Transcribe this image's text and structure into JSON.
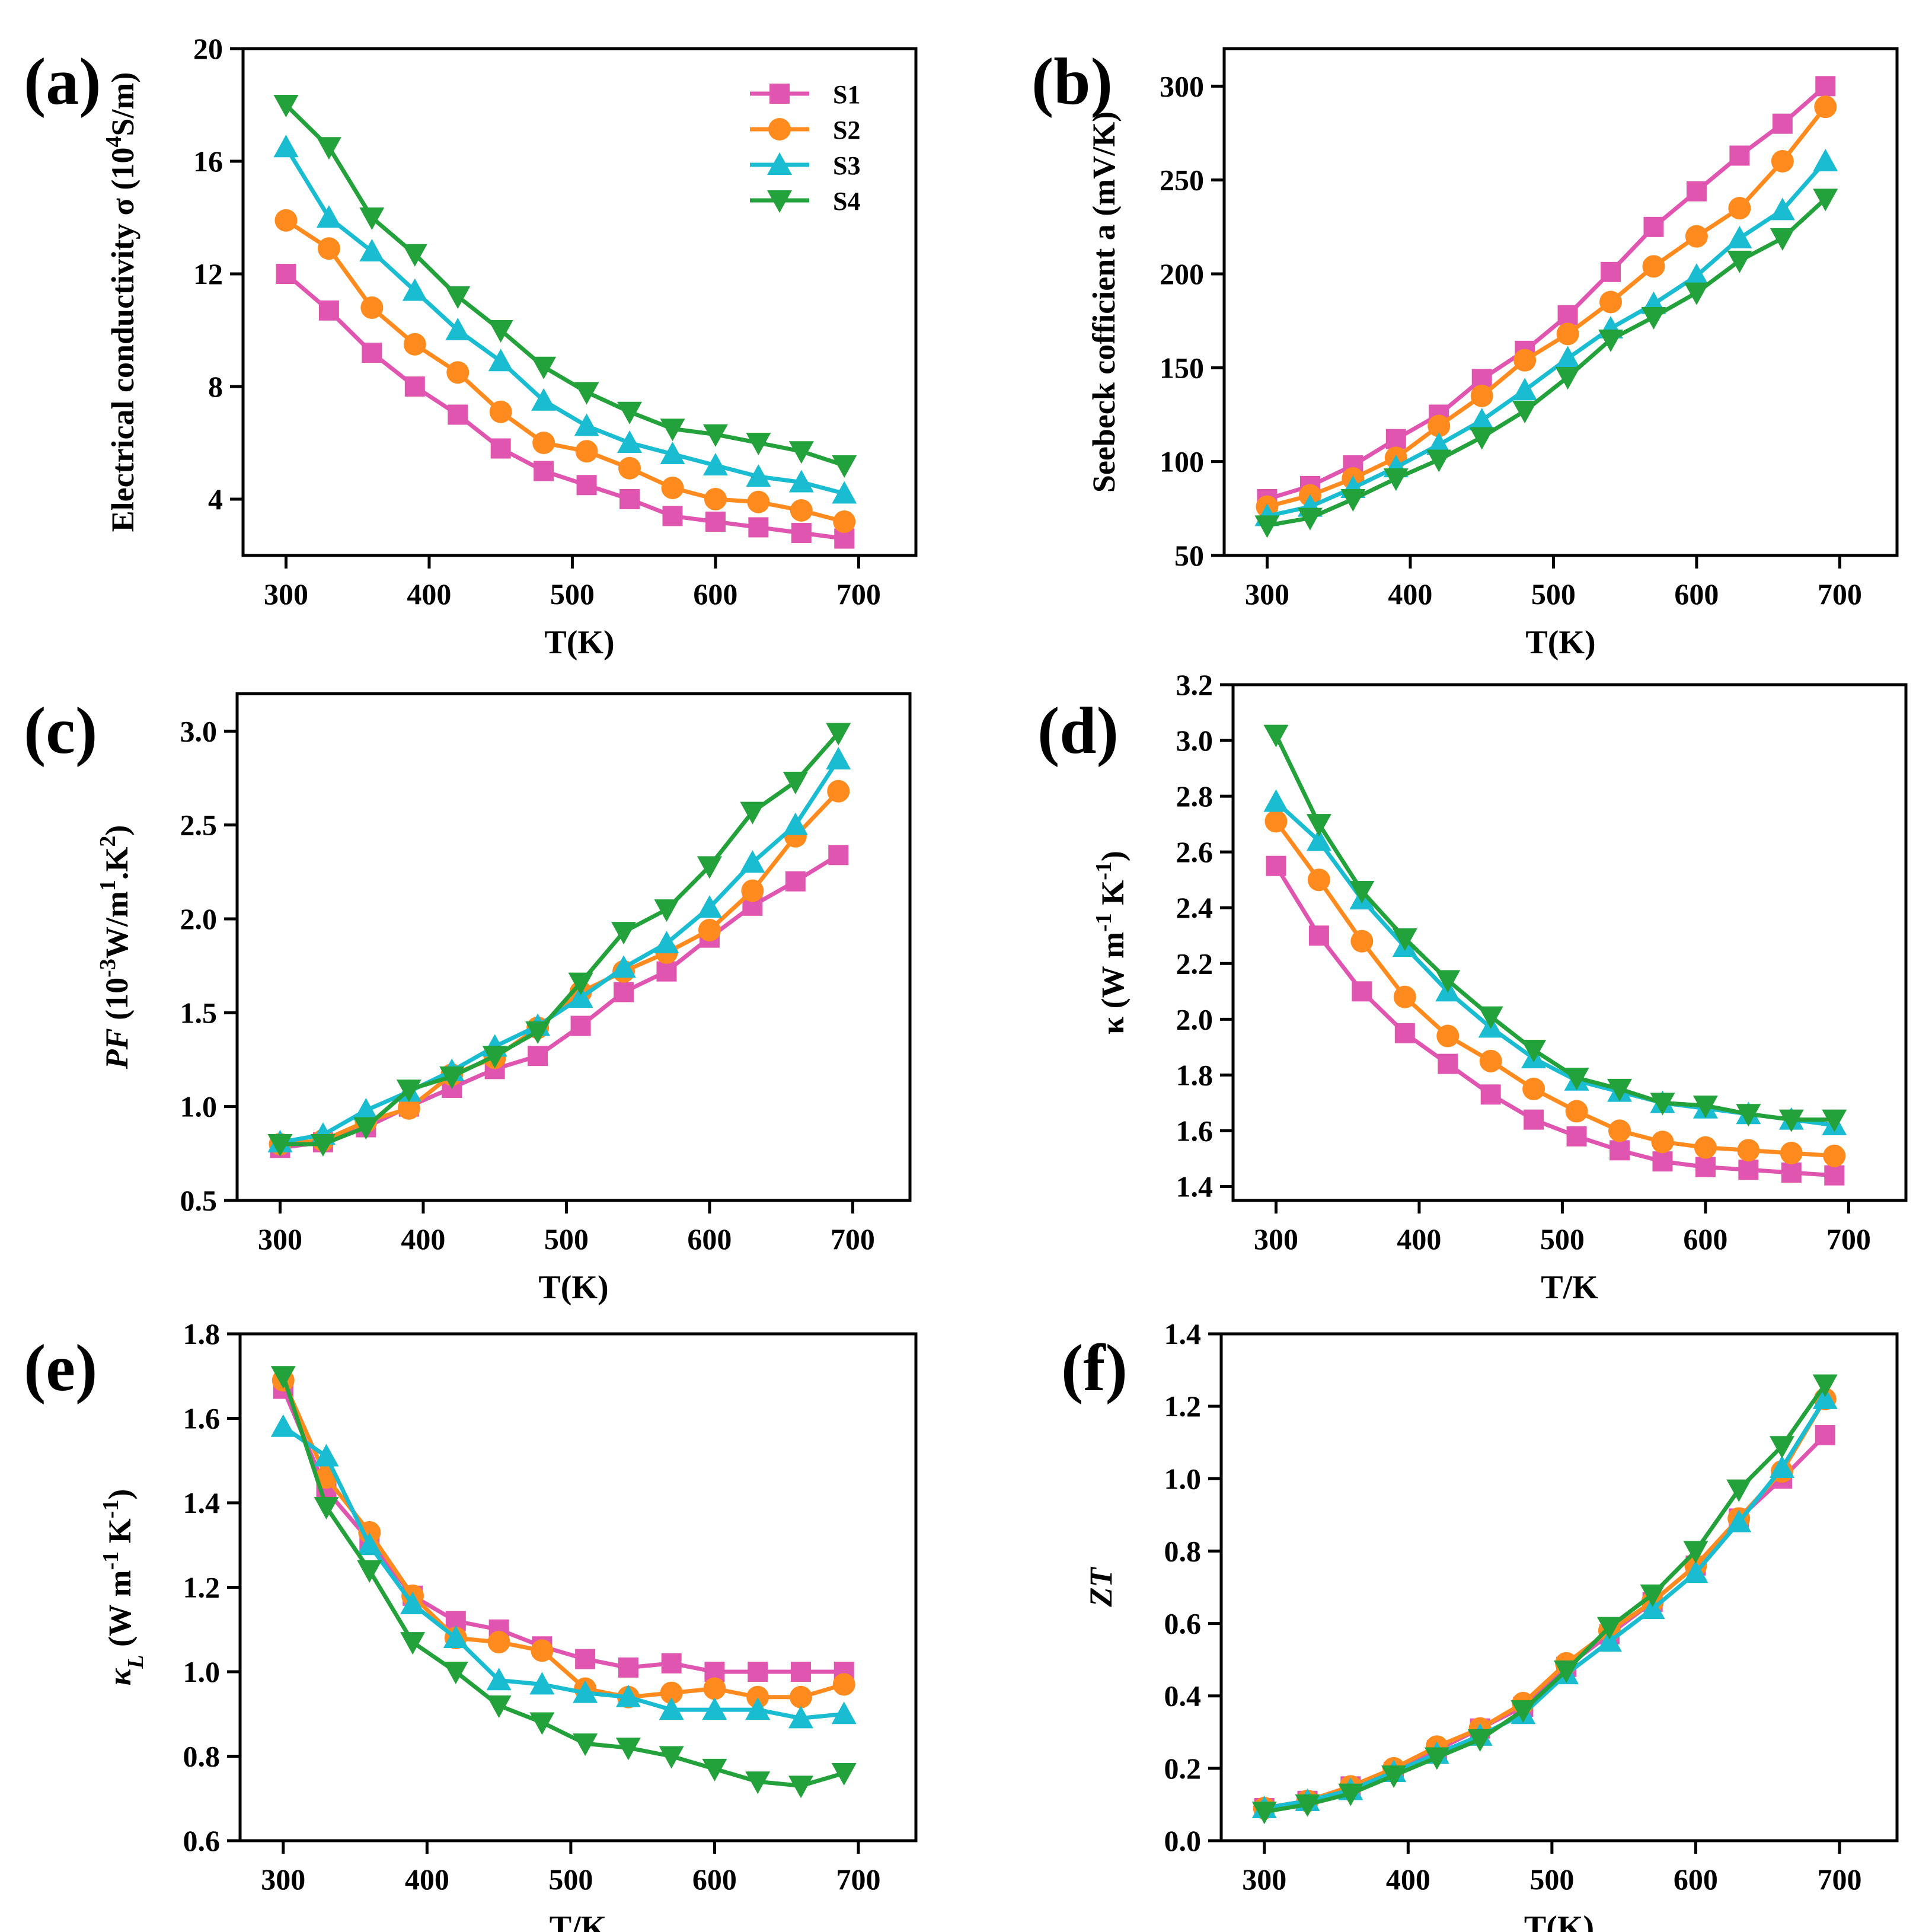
{
  "figure": {
    "series_names": [
      "S1",
      "S2",
      "S3",
      "S4"
    ],
    "colors": {
      "S1": "#e055b0",
      "S2": "#ff8a1e",
      "S3": "#19bcd1",
      "S4": "#23a13a"
    },
    "markers": {
      "S1": "square",
      "S2": "circle",
      "S3": "triangle-up",
      "S4": "triangle-down"
    }
  },
  "chart_data": [
    {
      "panel": "(a)",
      "type": "line",
      "xlabel": "T(K)",
      "ylabel_parts": [
        "Electrical conductivity σ (10",
        "4",
        "S/m)"
      ],
      "xlim": [
        270,
        740
      ],
      "ylim": [
        2,
        20
      ],
      "xticks": [
        300,
        400,
        500,
        600,
        700
      ],
      "yticks": [
        4,
        8,
        12,
        16,
        20
      ],
      "legend": "top-right",
      "x": [
        300,
        330,
        360,
        390,
        420,
        450,
        480,
        510,
        540,
        570,
        600,
        630,
        660,
        690
      ],
      "series": [
        {
          "name": "S1",
          "values": [
            12.0,
            10.7,
            9.2,
            8.0,
            7.0,
            5.8,
            5.0,
            4.5,
            4.0,
            3.4,
            3.2,
            3.0,
            2.8,
            2.6
          ]
        },
        {
          "name": "S2",
          "values": [
            13.9,
            12.9,
            10.8,
            9.5,
            8.5,
            7.1,
            6.0,
            5.7,
            5.1,
            4.4,
            4.0,
            3.9,
            3.6,
            3.2
          ]
        },
        {
          "name": "S3",
          "values": [
            16.5,
            14.0,
            12.8,
            11.4,
            10.0,
            8.9,
            7.5,
            6.6,
            6.0,
            5.6,
            5.2,
            4.8,
            4.6,
            4.2
          ]
        },
        {
          "name": "S4",
          "values": [
            18.0,
            16.5,
            14.0,
            12.7,
            11.2,
            10.0,
            8.7,
            7.8,
            7.1,
            6.5,
            6.3,
            6.0,
            5.7,
            5.2
          ]
        }
      ]
    },
    {
      "panel": "(b)",
      "type": "line",
      "xlabel": "T(K)",
      "ylabel_parts": [
        "Seebeck cofficient  a  (mV/K)"
      ],
      "xlim": [
        270,
        740
      ],
      "ylim": [
        50,
        320
      ],
      "xticks": [
        300,
        400,
        500,
        600,
        700
      ],
      "yticks": [
        50,
        100,
        150,
        200,
        250,
        300
      ],
      "x": [
        300,
        330,
        360,
        390,
        420,
        450,
        480,
        510,
        540,
        570,
        600,
        630,
        660,
        690
      ],
      "series": [
        {
          "name": "S1",
          "values": [
            80,
            87,
            98,
            112,
            125,
            144,
            159,
            178,
            201,
            225,
            244,
            263,
            280,
            300
          ]
        },
        {
          "name": "S2",
          "values": [
            76,
            82,
            91,
            102,
            119,
            135,
            154,
            168,
            185,
            204,
            220,
            235,
            260,
            289
          ]
        },
        {
          "name": "S3",
          "values": [
            71,
            76,
            86,
            97,
            109,
            122,
            138,
            155,
            171,
            184,
            199,
            219,
            234,
            260
          ]
        },
        {
          "name": "S4",
          "values": [
            66,
            70,
            80,
            91,
            101,
            113,
            127,
            145,
            165,
            177,
            190,
            207,
            219,
            240
          ]
        }
      ]
    },
    {
      "panel": "(c)",
      "type": "line",
      "xlabel": "T(K)",
      "ylabel_parts": [
        "PF",
        " (10",
        "-3",
        "W/m",
        "1",
        ".K",
        "2",
        ")"
      ],
      "xlim": [
        270,
        740
      ],
      "ylim": [
        0.5,
        3.2
      ],
      "xticks": [
        300,
        400,
        500,
        600,
        700
      ],
      "yticks": [
        0.5,
        1.0,
        1.5,
        2.0,
        2.5,
        3.0
      ],
      "x": [
        300,
        330,
        360,
        390,
        420,
        450,
        480,
        510,
        540,
        570,
        600,
        630,
        660,
        690
      ],
      "series": [
        {
          "name": "S1",
          "values": [
            0.78,
            0.81,
            0.89,
            1.0,
            1.1,
            1.2,
            1.27,
            1.43,
            1.61,
            1.72,
            1.9,
            2.07,
            2.2,
            2.34
          ]
        },
        {
          "name": "S2",
          "values": [
            0.8,
            0.82,
            0.92,
            0.99,
            1.17,
            1.26,
            1.42,
            1.61,
            1.72,
            1.82,
            1.94,
            2.15,
            2.44,
            2.68
          ]
        },
        {
          "name": "S3",
          "values": [
            0.81,
            0.85,
            0.98,
            1.08,
            1.19,
            1.32,
            1.43,
            1.58,
            1.74,
            1.87,
            2.06,
            2.3,
            2.5,
            2.85
          ]
        },
        {
          "name": "S4",
          "values": [
            0.8,
            0.8,
            0.89,
            1.09,
            1.16,
            1.27,
            1.4,
            1.66,
            1.93,
            2.05,
            2.28,
            2.57,
            2.73,
            2.99
          ]
        }
      ]
    },
    {
      "panel": "(d)",
      "type": "line",
      "xlabel": "T/K",
      "ylabel_parts": [
        "κ (W m",
        "-1",
        " K",
        "-1",
        ")"
      ],
      "xlim": [
        270,
        740
      ],
      "ylim": [
        1.35,
        3.2
      ],
      "xticks": [
        300,
        400,
        500,
        600,
        700
      ],
      "yticks": [
        1.4,
        1.6,
        1.8,
        2.0,
        2.2,
        2.4,
        2.6,
        2.8,
        3.0,
        3.2
      ],
      "x": [
        300,
        330,
        360,
        390,
        420,
        450,
        480,
        510,
        540,
        570,
        600,
        630,
        660,
        690
      ],
      "series": [
        {
          "name": "S1",
          "values": [
            2.55,
            2.3,
            2.1,
            1.95,
            1.84,
            1.73,
            1.64,
            1.58,
            1.53,
            1.49,
            1.47,
            1.46,
            1.45,
            1.44
          ]
        },
        {
          "name": "S2",
          "values": [
            2.71,
            2.5,
            2.28,
            2.08,
            1.94,
            1.85,
            1.75,
            1.67,
            1.6,
            1.56,
            1.54,
            1.53,
            1.52,
            1.51
          ]
        },
        {
          "name": "S3",
          "values": [
            2.78,
            2.64,
            2.43,
            2.26,
            2.1,
            1.97,
            1.86,
            1.78,
            1.74,
            1.7,
            1.68,
            1.66,
            1.64,
            1.62
          ]
        },
        {
          "name": "S4",
          "values": [
            3.02,
            2.7,
            2.46,
            2.29,
            2.14,
            2.01,
            1.89,
            1.79,
            1.75,
            1.7,
            1.69,
            1.66,
            1.64,
            1.64
          ]
        }
      ]
    },
    {
      "panel": "(e)",
      "type": "line",
      "xlabel": "T/K",
      "ylabel_parts": [
        "κ",
        "L",
        " (W m",
        "-1",
        " K",
        "-1",
        ")"
      ],
      "xlim": [
        270,
        740
      ],
      "ylim": [
        0.6,
        1.8
      ],
      "xticks": [
        300,
        400,
        500,
        600,
        700
      ],
      "yticks": [
        0.6,
        0.8,
        1.0,
        1.2,
        1.4,
        1.6,
        1.8
      ],
      "x": [
        300,
        330,
        360,
        390,
        420,
        450,
        480,
        510,
        540,
        570,
        600,
        630,
        660,
        690
      ],
      "series": [
        {
          "name": "S1",
          "values": [
            1.67,
            1.43,
            1.31,
            1.18,
            1.12,
            1.1,
            1.06,
            1.03,
            1.01,
            1.02,
            1.0,
            1.0,
            1.0,
            1.0
          ]
        },
        {
          "name": "S2",
          "values": [
            1.69,
            1.46,
            1.33,
            1.18,
            1.08,
            1.07,
            1.05,
            0.96,
            0.94,
            0.95,
            0.96,
            0.94,
            0.94,
            0.97
          ]
        },
        {
          "name": "S3",
          "values": [
            1.58,
            1.51,
            1.3,
            1.16,
            1.08,
            0.98,
            0.97,
            0.95,
            0.94,
            0.91,
            0.91,
            0.91,
            0.89,
            0.9
          ]
        },
        {
          "name": "S4",
          "values": [
            1.7,
            1.39,
            1.24,
            1.07,
            1.0,
            0.92,
            0.88,
            0.83,
            0.82,
            0.8,
            0.77,
            0.74,
            0.73,
            0.76
          ]
        }
      ]
    },
    {
      "panel": "(f)",
      "type": "line",
      "xlabel": "T(K)",
      "ylabel_parts": [
        "ZT"
      ],
      "xlim": [
        270,
        740
      ],
      "ylim": [
        0.0,
        1.4
      ],
      "xticks": [
        300,
        400,
        500,
        600,
        700
      ],
      "yticks": [
        0.0,
        0.2,
        0.4,
        0.6,
        0.8,
        1.0,
        1.2,
        1.4
      ],
      "x": [
        300,
        330,
        360,
        390,
        420,
        450,
        480,
        510,
        540,
        570,
        600,
        630,
        660,
        690
      ],
      "series": [
        {
          "name": "S1",
          "values": [
            0.09,
            0.11,
            0.15,
            0.19,
            0.25,
            0.31,
            0.37,
            0.48,
            0.57,
            0.66,
            0.76,
            0.89,
            1.0,
            1.12
          ]
        },
        {
          "name": "S2",
          "values": [
            0.09,
            0.11,
            0.15,
            0.2,
            0.26,
            0.31,
            0.38,
            0.49,
            0.58,
            0.66,
            0.76,
            0.89,
            1.02,
            1.22
          ]
        },
        {
          "name": "S3",
          "values": [
            0.09,
            0.11,
            0.14,
            0.19,
            0.24,
            0.29,
            0.35,
            0.46,
            0.55,
            0.64,
            0.74,
            0.88,
            1.03,
            1.22
          ]
        },
        {
          "name": "S4",
          "values": [
            0.08,
            0.1,
            0.13,
            0.18,
            0.23,
            0.28,
            0.36,
            0.47,
            0.59,
            0.68,
            0.8,
            0.97,
            1.09,
            1.26
          ]
        }
      ]
    }
  ]
}
